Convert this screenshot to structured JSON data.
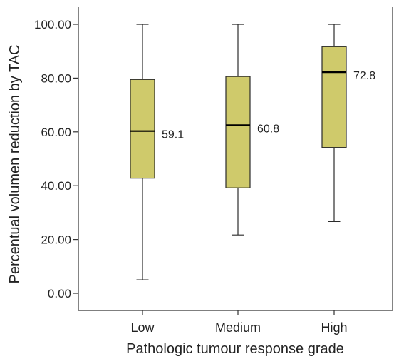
{
  "chart_data": {
    "type": "boxplot",
    "xlabel": "Pathologic tumour response grade",
    "ylabel": "Percentual volumen reduction by TAC",
    "ylim": [
      0,
      100
    ],
    "yticks": [
      "0.00",
      "20.00",
      "40.00",
      "60.00",
      "80.00",
      "100.00"
    ],
    "categories": [
      "Low",
      "Medium",
      "High"
    ],
    "boxes": [
      {
        "category": "Low",
        "min": 5,
        "q1": 42.8,
        "median": 60.3,
        "q3": 79.5,
        "max": 100,
        "label": "59.1"
      },
      {
        "category": "Medium",
        "min": 21.7,
        "q1": 39.2,
        "median": 62.5,
        "q3": 80.6,
        "max": 100,
        "label": "60.8"
      },
      {
        "category": "High",
        "min": 26.7,
        "q1": 54.2,
        "median": 82.2,
        "q3": 91.7,
        "max": 100,
        "label": "72.8"
      }
    ],
    "colors": {
      "box_fill": "#cfca6b",
      "box_stroke": "#2b2b2b",
      "axis": "#333333"
    },
    "grid": false,
    "legend": "none"
  }
}
